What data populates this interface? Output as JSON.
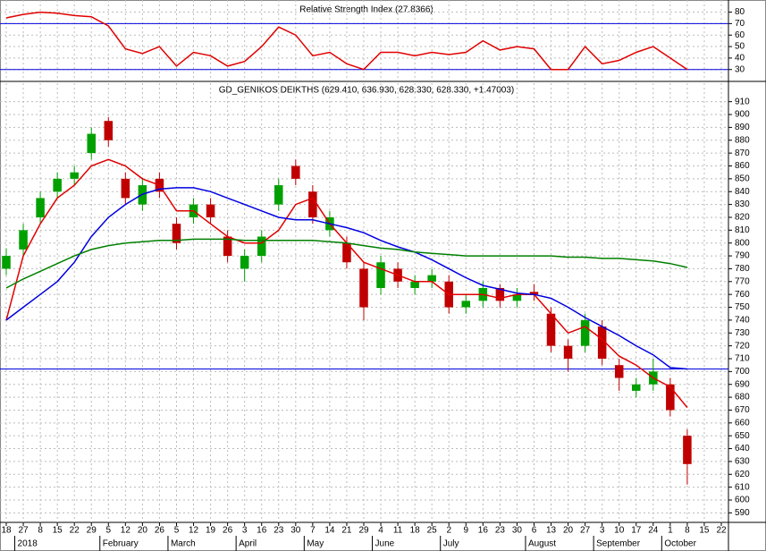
{
  "chart_data": [
    {
      "type": "line",
      "title": "Relative Strength Index (27.8366)",
      "series": [
        {
          "name": "RSI",
          "color": "#e00000",
          "values": [
            75,
            78,
            80,
            79,
            77,
            76,
            68,
            48,
            44,
            50,
            33,
            45,
            42,
            33,
            37,
            50,
            67,
            60,
            42,
            45,
            35,
            30,
            45,
            45,
            42,
            45,
            43,
            45,
            55,
            47,
            50,
            48,
            30,
            30,
            50,
            35,
            38,
            45,
            50,
            40,
            30,
            null,
            null
          ]
        }
      ],
      "ylim": [
        22,
        89
      ],
      "yticks": [
        30,
        40,
        50,
        60,
        70,
        80
      ],
      "ref_lines": [
        70,
        30
      ],
      "ref_color": "#0000e0",
      "grid": true
    },
    {
      "type": "candlestick",
      "title": "GD_GENIKOS DEIKTHS (629.410, 636.930, 628.330, 628.330, +1.47003)",
      "categories": [
        "18",
        "27",
        "8",
        "15",
        "22",
        "29",
        "5",
        "12",
        "20",
        "26",
        "5",
        "12",
        "19",
        "26",
        "3",
        "16",
        "23",
        "30",
        "7",
        "14",
        "21",
        "29",
        "4",
        "11",
        "18",
        "25",
        "2",
        "9",
        "16",
        "23",
        "30",
        "6",
        "13",
        "20",
        "27",
        "3",
        "10",
        "17",
        "24",
        "1",
        "8",
        "15",
        "22"
      ],
      "months": [
        null,
        "2018",
        null,
        null,
        null,
        null,
        "February",
        null,
        null,
        null,
        "March",
        null,
        null,
        null,
        "April",
        null,
        null,
        null,
        "May",
        null,
        null,
        null,
        "June",
        null,
        null,
        null,
        "July",
        null,
        null,
        null,
        null,
        "August",
        null,
        null,
        null,
        "September",
        null,
        null,
        null,
        "October",
        null,
        null,
        null
      ],
      "open": [
        780,
        795,
        820,
        840,
        850,
        870,
        895,
        850,
        830,
        850,
        815,
        820,
        830,
        805,
        780,
        790,
        830,
        860,
        840,
        810,
        800,
        780,
        765,
        780,
        765,
        770,
        770,
        750,
        755,
        765,
        755,
        762,
        745,
        720,
        720,
        735,
        705,
        685,
        690,
        690,
        650,
        null,
        null
      ],
      "high": [
        796,
        815,
        840,
        855,
        860,
        890,
        898,
        855,
        850,
        855,
        820,
        835,
        835,
        810,
        795,
        810,
        850,
        865,
        845,
        825,
        805,
        785,
        790,
        785,
        775,
        780,
        775,
        760,
        770,
        768,
        765,
        768,
        750,
        725,
        745,
        740,
        710,
        695,
        710,
        695,
        655,
        null,
        null
      ],
      "low": [
        775,
        790,
        815,
        835,
        845,
        865,
        875,
        830,
        825,
        835,
        795,
        815,
        815,
        785,
        770,
        785,
        825,
        845,
        815,
        805,
        780,
        740,
        760,
        765,
        760,
        765,
        745,
        745,
        750,
        750,
        750,
        755,
        715,
        700,
        715,
        705,
        685,
        680,
        685,
        665,
        612,
        null,
        null
      ],
      "close": [
        790,
        810,
        835,
        850,
        855,
        885,
        880,
        835,
        845,
        840,
        800,
        830,
        820,
        790,
        790,
        805,
        845,
        850,
        820,
        820,
        785,
        750,
        785,
        770,
        770,
        775,
        750,
        755,
        765,
        755,
        760,
        760,
        720,
        710,
        740,
        710,
        695,
        690,
        700,
        670,
        628,
        null,
        null
      ],
      "up_color": "#00a000",
      "down_color": "#c00000",
      "series": [
        {
          "color": "#e00000",
          "values": [
            740,
            790,
            815,
            835,
            845,
            860,
            865,
            860,
            850,
            845,
            825,
            825,
            815,
            805,
            800,
            800,
            810,
            830,
            835,
            815,
            800,
            785,
            780,
            775,
            770,
            770,
            760,
            760,
            760,
            757,
            760,
            760,
            745,
            730,
            735,
            725,
            712,
            705,
            695,
            688,
            672,
            null,
            null
          ]
        },
        {
          "color": "#0000e0",
          "values": [
            740,
            750,
            760,
            770,
            785,
            805,
            820,
            830,
            838,
            842,
            843,
            843,
            840,
            835,
            830,
            825,
            820,
            818,
            818,
            815,
            812,
            808,
            802,
            797,
            793,
            787,
            780,
            773,
            767,
            764,
            761,
            760,
            757,
            750,
            742,
            735,
            728,
            720,
            713,
            703,
            702,
            null,
            null
          ]
        },
        {
          "color": "#008000",
          "values": [
            765,
            772,
            778,
            784,
            790,
            795,
            798,
            800,
            801,
            802,
            802,
            803,
            803,
            803,
            802,
            802,
            802,
            802,
            802,
            801,
            800,
            798,
            796,
            795,
            793,
            792,
            791,
            790,
            790,
            790,
            790,
            790,
            790,
            789,
            789,
            788,
            788,
            787,
            786,
            784,
            781,
            null,
            null
          ]
        }
      ],
      "ylim": [
        584,
        923
      ],
      "yticks": [
        590,
        600,
        610,
        620,
        630,
        640,
        650,
        660,
        670,
        680,
        690,
        700,
        710,
        720,
        730,
        740,
        750,
        760,
        770,
        780,
        790,
        800,
        810,
        820,
        830,
        840,
        850,
        860,
        870,
        880,
        890,
        900,
        910
      ],
      "ref_lines": [
        702
      ],
      "ref_color": "#0000e0",
      "grid": true
    }
  ]
}
